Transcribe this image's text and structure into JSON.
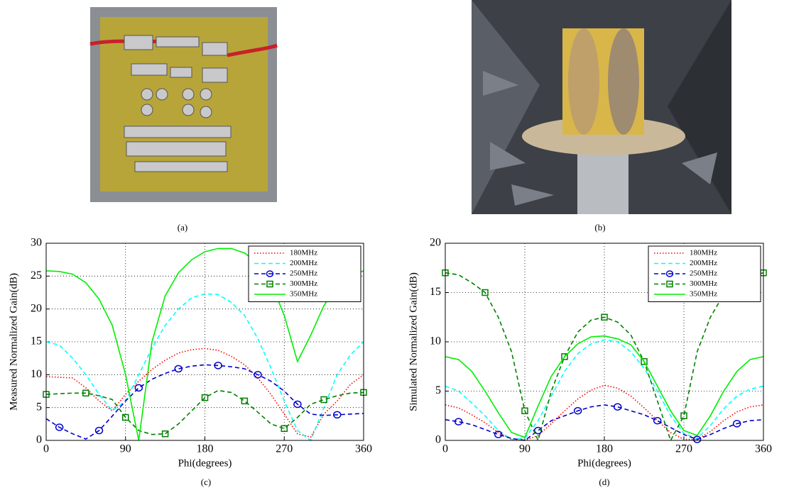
{
  "captions": [
    "(a)",
    "(b)",
    "(c)",
    "(d)"
  ],
  "chart_data": [
    {
      "type": "line",
      "xlabel": "Phi(degrees)",
      "ylabel": "Measured Normalized Gain(dB)",
      "x": [
        0,
        15,
        30,
        45,
        60,
        75,
        90,
        105,
        120,
        135,
        150,
        165,
        180,
        195,
        210,
        225,
        240,
        255,
        270,
        285,
        300,
        315,
        330,
        345,
        360
      ],
      "xlim": [
        0,
        360
      ],
      "xticks": [
        0,
        90,
        180,
        270,
        360
      ],
      "ylim": [
        0,
        30
      ],
      "yticks": [
        0,
        5,
        10,
        15,
        20,
        25,
        30
      ],
      "grid": true,
      "legend": "upper right",
      "series": [
        {
          "name": "180MHz",
          "color": "#ff0000",
          "dash": "dotted",
          "marker": "none",
          "values": [
            9.7,
            9.6,
            9.5,
            8,
            6,
            4.5,
            7,
            9,
            10.8,
            12.2,
            13.3,
            13.8,
            14,
            13.7,
            12.8,
            11.5,
            9.5,
            7,
            4,
            1,
            0.5,
            4,
            6,
            8.5,
            10
          ]
        },
        {
          "name": "200MHz",
          "color": "#00ffff",
          "dash": "dashed",
          "marker": "none",
          "values": [
            15,
            14.5,
            12.5,
            10,
            7,
            4.5,
            6,
            10,
            14,
            17.5,
            20,
            21.7,
            22.3,
            22.2,
            21,
            19,
            15.5,
            11,
            6,
            1.5,
            0,
            5,
            10,
            13,
            15
          ]
        },
        {
          "name": "250MHz",
          "color": "#0000cc",
          "dash": "dashed",
          "marker": "circle",
          "values": [
            3.3,
            2,
            1,
            0.2,
            1.5,
            3.7,
            6,
            8,
            9.3,
            10.2,
            10.9,
            11.3,
            11.5,
            11.4,
            11.2,
            10.9,
            10,
            9,
            7.5,
            5.5,
            4,
            3.8,
            3.9,
            4,
            4.1
          ]
        },
        {
          "name": "300MHz",
          "color": "#008000",
          "dash": "dashed",
          "marker": "square",
          "values": [
            7,
            7.1,
            7.2,
            7.2,
            6.8,
            6.2,
            3.5,
            1.5,
            0.9,
            1,
            2.5,
            4.5,
            6.5,
            7.6,
            7.3,
            6,
            4.3,
            2.5,
            1.8,
            3.5,
            5.5,
            6.2,
            6.8,
            7.2,
            7.3
          ]
        },
        {
          "name": "350MHz",
          "color": "#00ee00",
          "dash": "solid",
          "marker": "none",
          "values": [
            25.8,
            25.7,
            25.3,
            24,
            21.5,
            17.5,
            10,
            0,
            15,
            22,
            25.5,
            27.5,
            28.7,
            29.2,
            29.2,
            28.5,
            27,
            24,
            19,
            12,
            16,
            20.5,
            23.5,
            25,
            25.8
          ]
        }
      ]
    },
    {
      "type": "line",
      "xlabel": "Phi(degrees)",
      "ylabel": "Simulated Normalized Gain(dB)",
      "x": [
        0,
        15,
        30,
        45,
        60,
        75,
        90,
        105,
        120,
        135,
        150,
        165,
        180,
        195,
        210,
        225,
        240,
        255,
        270,
        285,
        300,
        315,
        330,
        345,
        360
      ],
      "xlim": [
        0,
        360
      ],
      "xticks": [
        0,
        90,
        180,
        270,
        360
      ],
      "ylim": [
        0,
        20
      ],
      "yticks": [
        0,
        5,
        10,
        15,
        20
      ],
      "grid": true,
      "legend": "upper right",
      "series": [
        {
          "name": "180MHz",
          "color": "#ff0000",
          "dash": "dotted",
          "marker": "none",
          "values": [
            3.6,
            3.3,
            2.6,
            1.8,
            0.8,
            0.1,
            0,
            0.5,
            1.7,
            3,
            4.2,
            5.1,
            5.6,
            5.3,
            4.5,
            3.3,
            2,
            0.8,
            0.1,
            0.1,
            0.9,
            2,
            2.9,
            3.4,
            3.6
          ]
        },
        {
          "name": "200MHz",
          "color": "#00ffff",
          "dash": "dashed",
          "marker": "none",
          "values": [
            5.5,
            5,
            3.8,
            2.5,
            1,
            0.1,
            0.2,
            2,
            4.5,
            7,
            8.8,
            9.8,
            10.2,
            10,
            9,
            7.3,
            5,
            2.5,
            0.7,
            0.2,
            1.5,
            3.2,
            4.5,
            5.2,
            5.5
          ]
        },
        {
          "name": "250MHz",
          "color": "#0000cc",
          "dash": "dashed",
          "marker": "circle",
          "values": [
            2.1,
            1.9,
            1.6,
            1.1,
            0.6,
            0.2,
            0,
            1,
            2,
            2.5,
            3,
            3.4,
            3.6,
            3.4,
            3,
            2.6,
            2,
            1.3,
            0.6,
            0.1,
            0.6,
            1.2,
            1.7,
            2,
            2.1
          ]
        },
        {
          "name": "300MHz",
          "color": "#008000",
          "dash": "dashed",
          "marker": "square",
          "values": [
            17,
            16.8,
            16,
            15,
            12.5,
            9,
            3,
            0,
            5,
            8.5,
            11,
            12.2,
            12.5,
            12,
            10.7,
            8,
            4,
            0,
            2.5,
            9,
            12.5,
            14.8,
            16,
            16.7,
            17
          ]
        },
        {
          "name": "350MHz",
          "color": "#00ee00",
          "dash": "solid",
          "marker": "none",
          "values": [
            8.5,
            8.2,
            7,
            5,
            2.8,
            0.8,
            0.3,
            3.5,
            6.5,
            8.5,
            9.8,
            10.5,
            10.6,
            10.3,
            9.7,
            8,
            5.5,
            3,
            1,
            0.5,
            2.5,
            5,
            7,
            8.2,
            8.5
          ]
        }
      ]
    }
  ]
}
